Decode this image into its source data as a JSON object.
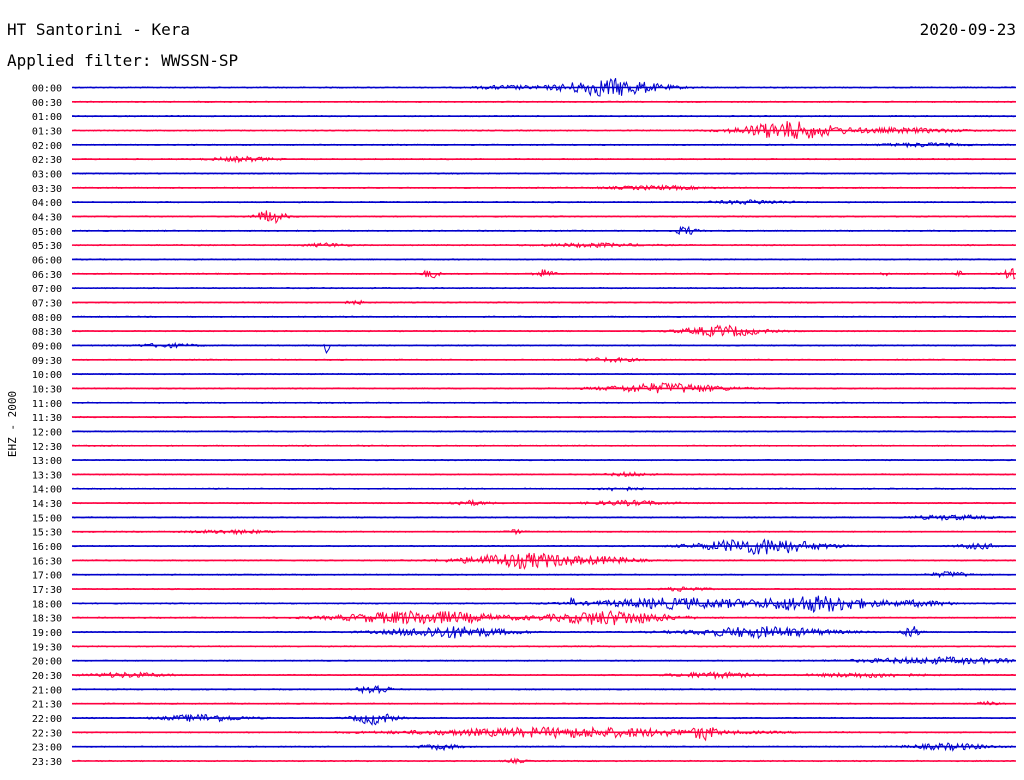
{
  "header": {
    "station": "HT Santorini - Kera",
    "date": "2020-09-23",
    "filter": "Applied filter: WWSSN-SP"
  },
  "chart_data": {
    "type": "helicorder",
    "channel_label": "EHZ - 2000",
    "row_interval_minutes": 30,
    "colors": [
      "#0000cc",
      "#ff0040"
    ],
    "rows": [
      {
        "label": "00:00",
        "events": [
          [
            0.46,
            0.2,
            0.03
          ],
          [
            0.57,
            1.0,
            0.05
          ]
        ]
      },
      {
        "label": "00:30",
        "events": []
      },
      {
        "label": "01:00",
        "events": []
      },
      {
        "label": "01:30",
        "events": [
          [
            0.76,
            1.0,
            0.05
          ],
          [
            0.88,
            0.25,
            0.06
          ]
        ]
      },
      {
        "label": "02:00",
        "events": [
          [
            0.9,
            0.2,
            0.04
          ]
        ]
      },
      {
        "label": "02:30",
        "events": [
          [
            0.18,
            0.25,
            0.03
          ]
        ]
      },
      {
        "label": "03:00",
        "events": []
      },
      {
        "label": "03:30",
        "events": [
          [
            0.62,
            0.2,
            0.05
          ]
        ]
      },
      {
        "label": "04:00",
        "events": [
          [
            0.72,
            0.2,
            0.04
          ]
        ]
      },
      {
        "label": "04:30",
        "events": [
          [
            0.21,
            0.75,
            0.015
          ]
        ]
      },
      {
        "label": "05:00",
        "events": [
          [
            0.65,
            0.5,
            0.01
          ]
        ]
      },
      {
        "label": "05:30",
        "events": [
          [
            0.27,
            0.2,
            0.02
          ],
          [
            0.55,
            0.2,
            0.05
          ]
        ]
      },
      {
        "label": "06:00",
        "events": []
      },
      {
        "label": "06:30",
        "events": [
          [
            0.38,
            0.5,
            0.008
          ],
          [
            0.5,
            0.45,
            0.01
          ],
          [
            0.86,
            0.25,
            0.004
          ],
          [
            0.94,
            0.25,
            0.004
          ],
          [
            0.995,
            0.6,
            0.008
          ]
        ]
      },
      {
        "label": "07:00",
        "events": []
      },
      {
        "label": "07:30",
        "events": [
          [
            0.3,
            0.2,
            0.01
          ]
        ]
      },
      {
        "label": "08:00",
        "events": []
      },
      {
        "label": "08:30",
        "events": [
          [
            0.69,
            0.6,
            0.04
          ]
        ]
      },
      {
        "label": "09:00",
        "events": [
          [
            0.27,
            1.1,
            0.002
          ],
          [
            0.1,
            0.2,
            0.03
          ]
        ]
      },
      {
        "label": "09:30",
        "events": [
          [
            0.57,
            0.2,
            0.03
          ]
        ]
      },
      {
        "label": "10:00",
        "events": []
      },
      {
        "label": "10:30",
        "events": [
          [
            0.63,
            0.55,
            0.06
          ]
        ]
      },
      {
        "label": "11:00",
        "events": []
      },
      {
        "label": "11:30",
        "events": []
      },
      {
        "label": "12:00",
        "events": []
      },
      {
        "label": "12:30",
        "events": []
      },
      {
        "label": "13:00",
        "events": []
      },
      {
        "label": "13:30",
        "events": [
          [
            0.59,
            0.2,
            0.02
          ]
        ]
      },
      {
        "label": "14:00",
        "events": [
          [
            0.58,
            0.2,
            0.02
          ]
        ]
      },
      {
        "label": "14:30",
        "events": [
          [
            0.42,
            0.25,
            0.02
          ],
          [
            0.59,
            0.25,
            0.04
          ]
        ]
      },
      {
        "label": "15:00",
        "events": [
          [
            0.93,
            0.25,
            0.04
          ]
        ]
      },
      {
        "label": "15:30",
        "events": [
          [
            0.17,
            0.2,
            0.04
          ],
          [
            0.47,
            0.2,
            0.01
          ]
        ]
      },
      {
        "label": "16:00",
        "events": [
          [
            0.73,
            0.9,
            0.06
          ],
          [
            0.96,
            0.3,
            0.02
          ]
        ]
      },
      {
        "label": "16:30",
        "events": [
          [
            0.48,
            0.85,
            0.06
          ],
          [
            0.57,
            0.3,
            0.03
          ]
        ]
      },
      {
        "label": "17:00",
        "events": [
          [
            0.93,
            0.3,
            0.02
          ]
        ]
      },
      {
        "label": "17:30",
        "events": [
          [
            0.65,
            0.25,
            0.02
          ]
        ]
      },
      {
        "label": "18:00",
        "events": [
          [
            0.53,
            1.2,
            0.002
          ],
          [
            0.64,
            0.6,
            0.08
          ],
          [
            0.79,
            0.9,
            0.06
          ],
          [
            0.9,
            0.3,
            0.03
          ]
        ]
      },
      {
        "label": "18:30",
        "events": [
          [
            0.37,
            0.75,
            0.08
          ],
          [
            0.57,
            0.8,
            0.06
          ]
        ]
      },
      {
        "label": "19:00",
        "events": [
          [
            0.4,
            0.65,
            0.06
          ],
          [
            0.73,
            0.6,
            0.07
          ],
          [
            0.89,
            0.6,
            0.01
          ]
        ]
      },
      {
        "label": "19:30",
        "events": []
      },
      {
        "label": "20:00",
        "events": [
          [
            0.92,
            0.35,
            0.08
          ]
        ]
      },
      {
        "label": "20:30",
        "events": [
          [
            0.06,
            0.25,
            0.04
          ],
          [
            0.68,
            0.3,
            0.04
          ],
          [
            0.84,
            0.25,
            0.05
          ]
        ]
      },
      {
        "label": "21:00",
        "events": [
          [
            0.32,
            0.6,
            0.015
          ]
        ]
      },
      {
        "label": "21:30",
        "events": [
          [
            0.97,
            0.2,
            0.01
          ]
        ]
      },
      {
        "label": "22:00",
        "events": [
          [
            0.14,
            0.4,
            0.04
          ],
          [
            0.32,
            0.7,
            0.02
          ]
        ]
      },
      {
        "label": "22:30",
        "events": [
          [
            0.53,
            0.55,
            0.15
          ],
          [
            0.67,
            0.7,
            0.01
          ]
        ]
      },
      {
        "label": "23:00",
        "events": [
          [
            0.39,
            0.3,
            0.02
          ],
          [
            0.93,
            0.35,
            0.04
          ]
        ]
      },
      {
        "label": "23:30",
        "events": [
          [
            0.47,
            0.2,
            0.01
          ]
        ]
      }
    ]
  }
}
